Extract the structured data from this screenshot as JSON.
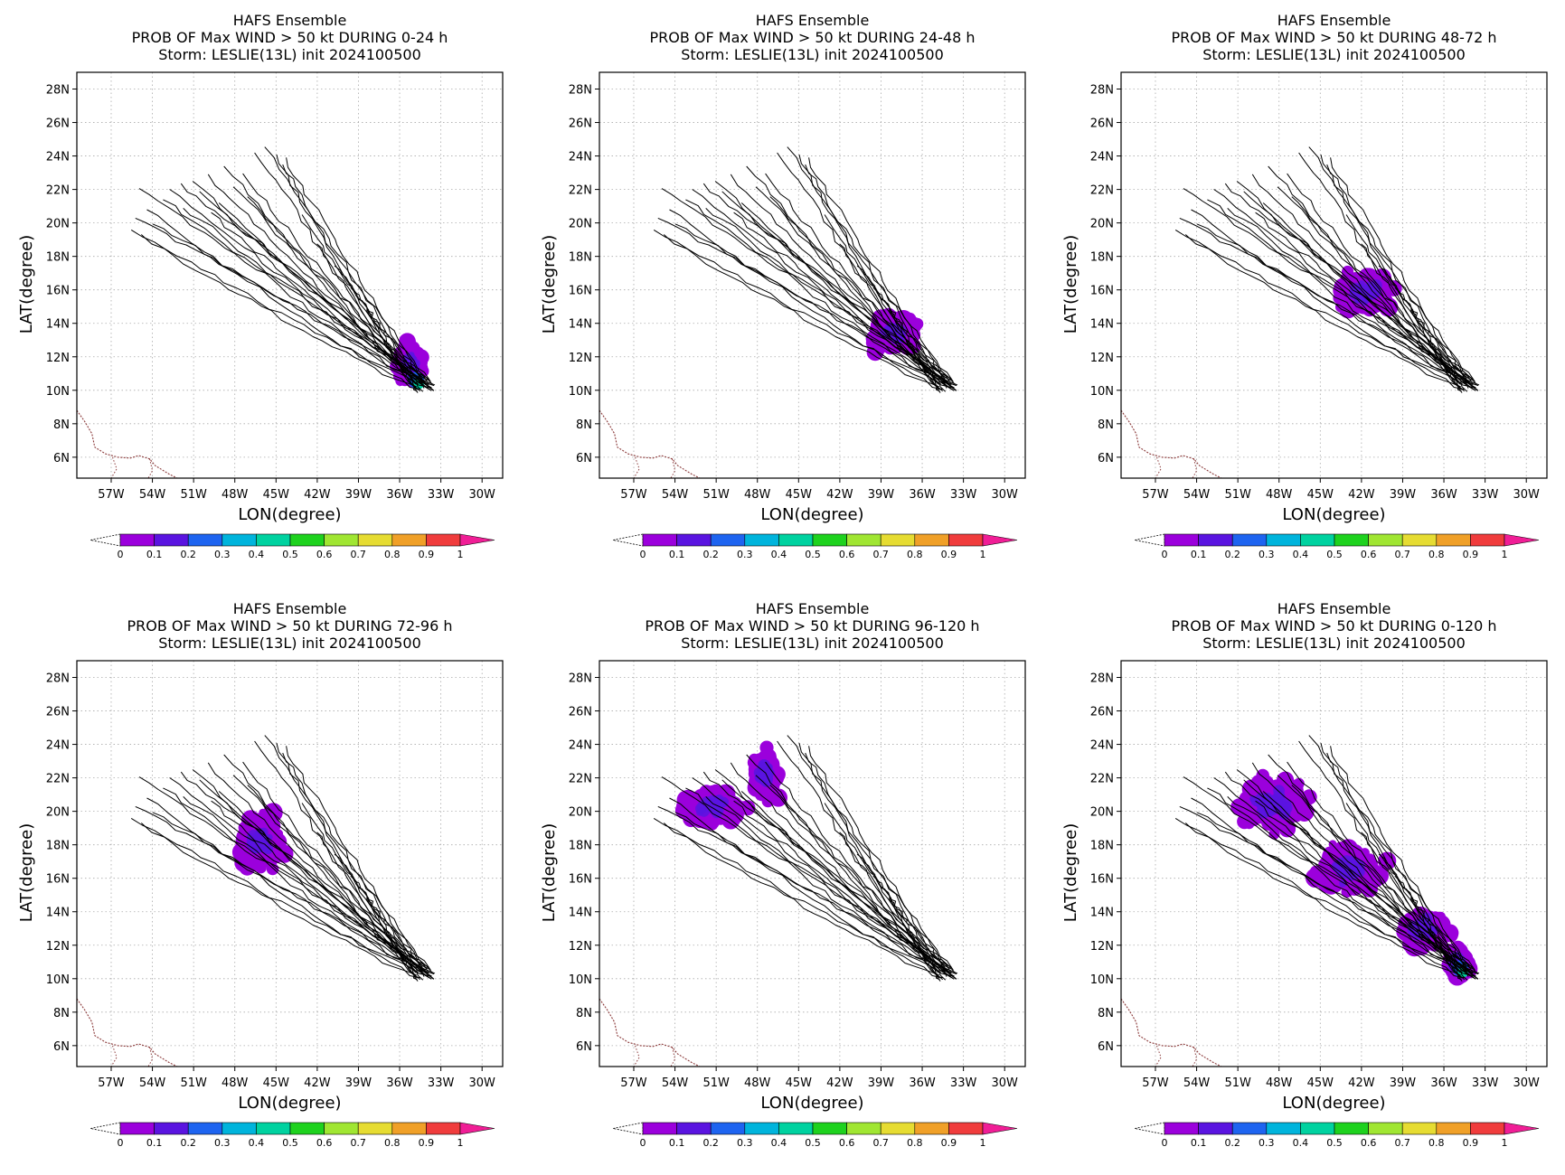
{
  "common": {
    "title_line1": "HAFS Ensemble",
    "title_line3": "Storm: LESLIE(13L) init 2024100500",
    "xlabel": "LON(degree)",
    "ylabel": "LAT(degree)",
    "lon_ticks": [
      "57W",
      "54W",
      "51W",
      "48W",
      "45W",
      "42W",
      "39W",
      "36W",
      "33W",
      "30W"
    ],
    "lat_ticks": [
      "28N",
      "26N",
      "24N",
      "22N",
      "20N",
      "18N",
      "16N",
      "14N",
      "12N",
      "10N",
      "8N",
      "6N"
    ],
    "colorbar_labels": [
      "0",
      "0.1",
      "0.2",
      "0.3",
      "0.4",
      "0.5",
      "0.6",
      "0.7",
      "0.8",
      "0.9",
      "1"
    ],
    "colorbar_colors": [
      "#9b00dc",
      "#5a14e0",
      "#1e64f0",
      "#00b4dc",
      "#00d2a0",
      "#1ed21e",
      "#a0e632",
      "#e6dc32",
      "#f0a028",
      "#f03c3c"
    ],
    "arrow_color": "#f01e96",
    "track_color": "#000000",
    "coast_color": "#8b3a3a"
  },
  "panels": [
    {
      "title_line2": "PROB OF Max WIND > 50 kt DURING  0-24 h"
    },
    {
      "title_line2": "PROB OF Max WIND > 50 kt DURING 24-48 h"
    },
    {
      "title_line2": "PROB OF Max WIND > 50 kt DURING 48-72 h"
    },
    {
      "title_line2": "PROB OF Max WIND > 50 kt DURING 72-96 h"
    },
    {
      "title_line2": "PROB OF Max WIND > 50 kt DURING 96-120 h"
    },
    {
      "title_line2": "PROB OF Max WIND > 50 kt DURING 0-120 h"
    }
  ]
}
